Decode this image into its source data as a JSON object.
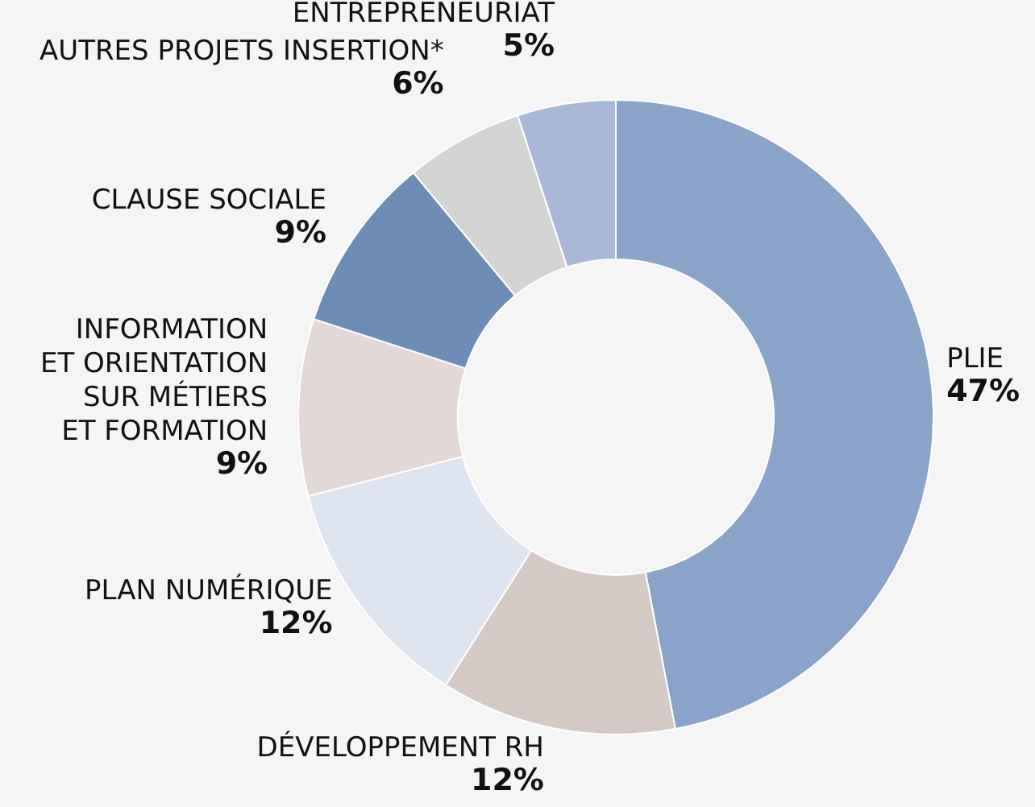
{
  "chart_data": {
    "type": "donut",
    "categories": [
      "PLIE",
      "DÉVELOPPEMENT RH",
      "PLAN NUMÉRIQUE",
      "INFORMATION\nET ORIENTATION\nSUR MÉTIERS\nET FORMATION",
      "CLAUSE SOCIALE",
      "AUTRES PROJETS INSERTION*",
      "ENTREPRENEURIAT"
    ],
    "values": [
      47,
      12,
      12,
      9,
      9,
      6,
      5
    ],
    "value_labels": [
      "47%",
      "12%",
      "12%",
      "9%",
      "9%",
      "6%",
      "5%"
    ],
    "colors": [
      "#8aa3c8",
      "#d5c9c6",
      "#dfe4f1",
      "#e2d8d5",
      "#6e8db6",
      "#d3d3d3",
      "#a8b8d6"
    ],
    "legend": false
  }
}
